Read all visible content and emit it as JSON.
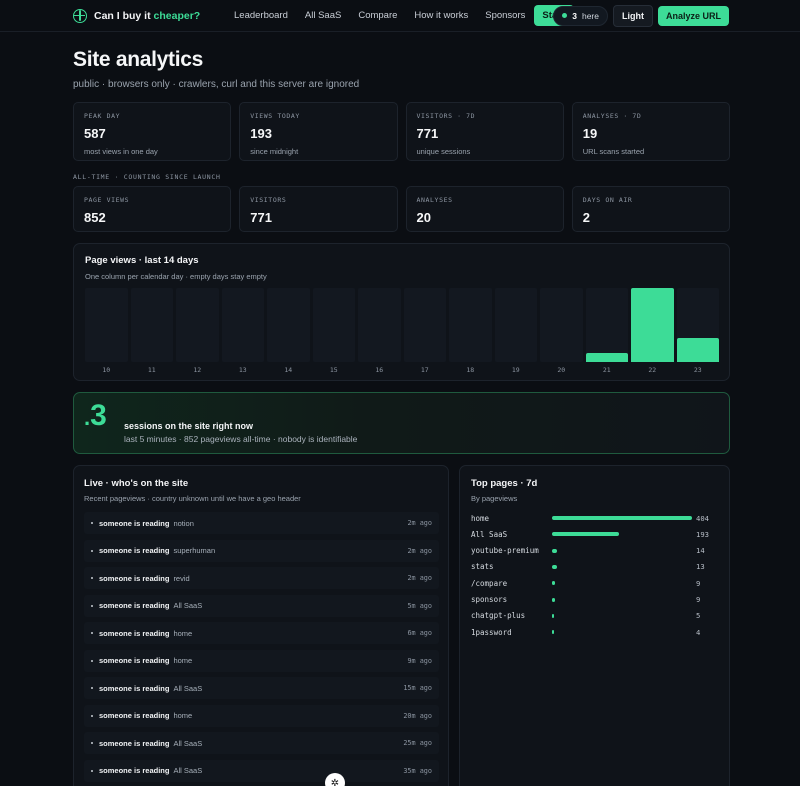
{
  "nav": {
    "brand_prefix": "Can I buy it ",
    "brand_accent": "cheaper?",
    "links": [
      {
        "label": "Leaderboard"
      },
      {
        "label": "All SaaS"
      },
      {
        "label": "Compare"
      },
      {
        "label": "How it works"
      },
      {
        "label": "Sponsors"
      },
      {
        "label": "Stats",
        "active": true
      }
    ],
    "here_count": "3",
    "here_label": "here",
    "theme_button": "Light",
    "analyze_button": "Analyze URL"
  },
  "page": {
    "title": "Site analytics",
    "subtitle": "public · browsers only · crawlers, curl and this server are ignored"
  },
  "stats_recent": [
    {
      "label": "PEAK DAY",
      "value": "587",
      "note": "most views in one day"
    },
    {
      "label": "VIEWS TODAY",
      "value": "193",
      "note": "since midnight"
    },
    {
      "label": "VISITORS · 7D",
      "value": "771",
      "note": "unique sessions"
    },
    {
      "label": "ANALYSES · 7D",
      "value": "19",
      "note": "URL scans started"
    }
  ],
  "alltime_label": "ALL-TIME · COUNTING SINCE LAUNCH",
  "stats_alltime": [
    {
      "label": "PAGE VIEWS",
      "value": "852"
    },
    {
      "label": "VISITORS",
      "value": "771"
    },
    {
      "label": "ANALYSES",
      "value": "20"
    },
    {
      "label": "DAYS ON AIR",
      "value": "2"
    }
  ],
  "pageviews_card": {
    "title": "Page views · last 14 days",
    "subtitle": "One column per calendar day · empty days stay empty"
  },
  "chart_data": {
    "type": "bar",
    "categories": [
      "10",
      "11",
      "12",
      "13",
      "14",
      "15",
      "16",
      "17",
      "18",
      "19",
      "20",
      "21",
      "22",
      "23"
    ],
    "values": [
      0,
      0,
      0,
      0,
      0,
      0,
      0,
      0,
      0,
      0,
      0,
      72,
      587,
      193
    ],
    "ylim": [
      0,
      587
    ]
  },
  "now_card": {
    "count": "3",
    "title": "sessions on the site right now",
    "subtitle": "last 5 minutes · 852 pageviews all-time · nobody is identifiable"
  },
  "live_card": {
    "title": "Live · who's on the site",
    "subtitle": "Recent pageviews · country unknown until we have a geo header",
    "reading_label": "someone is reading",
    "items": [
      {
        "page": "notion",
        "ago": "2m ago"
      },
      {
        "page": "superhuman",
        "ago": "2m ago"
      },
      {
        "page": "revid",
        "ago": "2m ago"
      },
      {
        "page": "All SaaS",
        "ago": "5m ago"
      },
      {
        "page": "home",
        "ago": "6m ago"
      },
      {
        "page": "home",
        "ago": "9m ago"
      },
      {
        "page": "All SaaS",
        "ago": "15m ago"
      },
      {
        "page": "home",
        "ago": "20m ago"
      },
      {
        "page": "All SaaS",
        "ago": "25m ago"
      },
      {
        "page": "All SaaS",
        "ago": "35m ago"
      }
    ]
  },
  "top_pages": {
    "title": "Top pages · 7d",
    "subtitle": "By pageviews",
    "rows": [
      {
        "name": "home",
        "count": 404
      },
      {
        "name": "All SaaS",
        "count": 193
      },
      {
        "name": "youtube-premium",
        "count": 14
      },
      {
        "name": "stats",
        "count": 13
      },
      {
        "name": "/compare",
        "count": 9
      },
      {
        "name": "sponsors",
        "count": 9
      },
      {
        "name": "chatgpt-plus",
        "count": 5
      },
      {
        "name": "1password",
        "count": 4
      }
    ]
  },
  "colors": {
    "accent": "#3ddc97",
    "background": "#0b0e13",
    "card": "#0f1319"
  }
}
